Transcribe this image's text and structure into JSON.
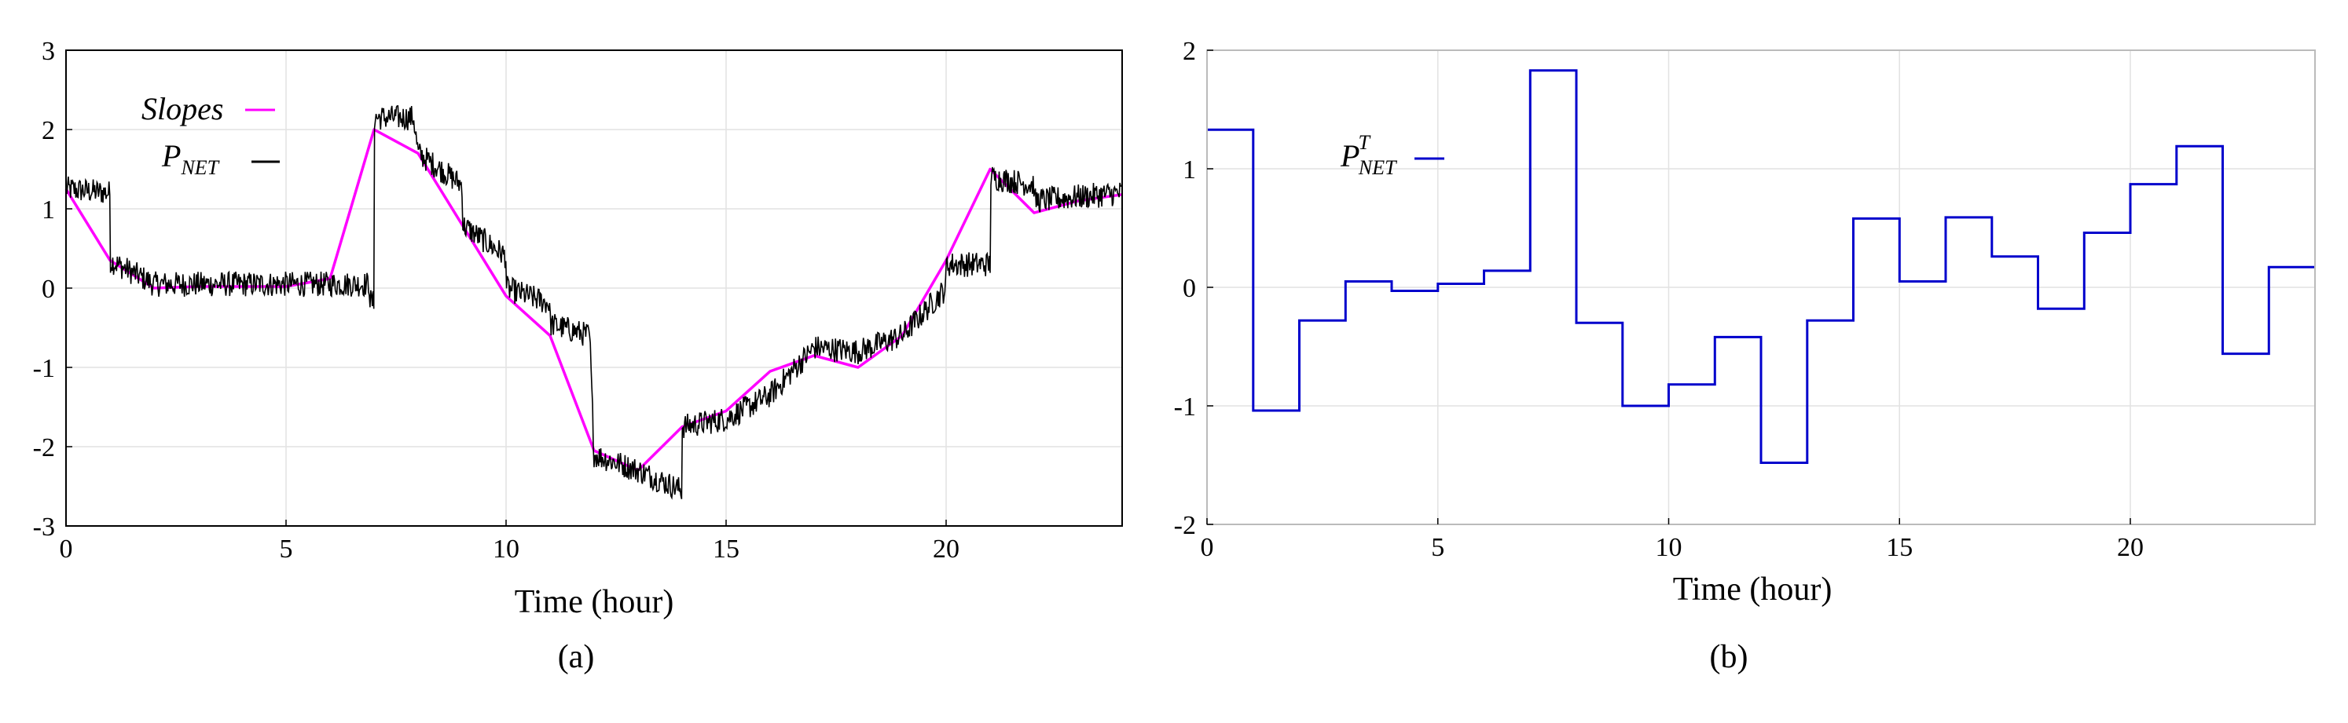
{
  "chart_data": [
    {
      "type": "line",
      "subfigure_label": "(a)",
      "xlabel": "Time (hour)",
      "ylabel": "",
      "xlim": [
        0,
        24
      ],
      "ylim": [
        -3,
        3
      ],
      "xticks": [
        0,
        5,
        10,
        15,
        20
      ],
      "yticks": [
        -3,
        -2,
        -1,
        0,
        1,
        2,
        3
      ],
      "grid": true,
      "legend_position": "top-left",
      "series": [
        {
          "name": "Slopes",
          "color": "#ff00ff",
          "x": [
            0,
            1,
            2,
            3,
            4,
            5,
            6,
            7,
            8,
            9,
            10,
            11,
            12,
            13,
            14,
            15,
            16,
            17,
            18,
            19,
            20,
            21,
            22,
            23,
            24
          ],
          "y": [
            1.25,
            0.35,
            0.0,
            0.02,
            0.02,
            0.02,
            0.12,
            2.0,
            1.7,
            0.8,
            -0.1,
            -0.6,
            -2.05,
            -2.3,
            -1.75,
            -1.55,
            -1.05,
            -0.85,
            -1.0,
            -0.6,
            0.35,
            1.5,
            0.95,
            1.1,
            1.18
          ]
        },
        {
          "name": "P",
          "name_subscript": "NET",
          "color": "#000000",
          "style": "noisy",
          "base_x": [
            0,
            1,
            1,
            2,
            6.9,
            6.9,
            7,
            7,
            7.9,
            8,
            9,
            9,
            10,
            10,
            11,
            11,
            11.9,
            12,
            13,
            14,
            14,
            15,
            16,
            17,
            18,
            19,
            20,
            20,
            21,
            21,
            22,
            22,
            24
          ],
          "base_y": [
            1.25,
            1.2,
            0.35,
            0.05,
            0.05,
            -0.15,
            -0.2,
            2.15,
            2.15,
            1.7,
            1.3,
            0.8,
            0.4,
            0.0,
            -0.2,
            -0.45,
            -0.6,
            -2.1,
            -2.3,
            -2.55,
            -1.75,
            -1.65,
            -1.35,
            -0.75,
            -0.8,
            -0.6,
            0.0,
            0.3,
            0.3,
            1.4,
            1.3,
            1.1,
            1.2
          ]
        }
      ]
    },
    {
      "type": "line",
      "step": true,
      "subfigure_label": "(b)",
      "xlabel": "Time (hour)",
      "ylabel": "",
      "xlim": [
        0,
        24
      ],
      "ylim": [
        -2,
        2
      ],
      "xticks": [
        0,
        5,
        10,
        15,
        20
      ],
      "yticks": [
        -2,
        -1,
        0,
        1,
        2
      ],
      "grid": true,
      "legend_position": "top-left",
      "series": [
        {
          "name": "P",
          "name_subscript": "NET",
          "name_superscript": "T",
          "color": "#0000cc",
          "x": [
            0,
            1,
            2,
            3,
            4,
            5,
            6,
            7,
            8,
            9,
            10,
            11,
            12,
            13,
            14,
            15,
            16,
            17,
            18,
            19,
            20,
            21,
            22,
            23
          ],
          "y": [
            1.33,
            -1.04,
            -0.28,
            0.05,
            -0.03,
            0.03,
            0.14,
            1.83,
            -0.3,
            -1.0,
            -0.82,
            -0.42,
            -1.48,
            -0.28,
            0.58,
            0.05,
            0.59,
            0.26,
            -0.18,
            0.46,
            0.87,
            1.19,
            -0.56,
            0.17
          ]
        }
      ]
    }
  ]
}
